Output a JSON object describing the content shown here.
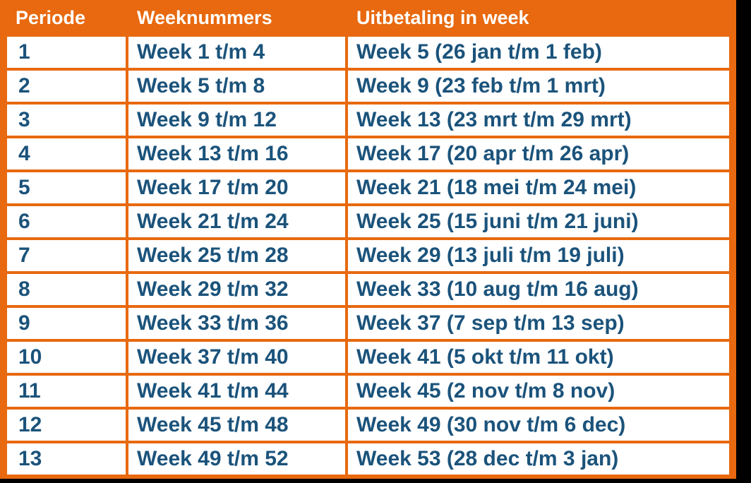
{
  "page": {
    "background_color": "#000000"
  },
  "colors": {
    "table_orange": "#E8690F",
    "header_text": "#FFFFFF",
    "cell_background": "#FFFFFF",
    "cell_text_navy": "#1B537B",
    "outer_black": "#000000"
  },
  "table": {
    "columns": [
      {
        "key": "periode",
        "label": "Periode"
      },
      {
        "key": "weeknummers",
        "label": "Weeknummers"
      },
      {
        "key": "uitbetaling",
        "label": "Uitbetaling in week"
      }
    ],
    "rows": [
      {
        "periode": "1",
        "weeknummers": "Week 1 t/m 4",
        "uitbetaling": "Week 5 (26 jan t/m 1 feb)"
      },
      {
        "periode": "2",
        "weeknummers": "Week 5 t/m 8",
        "uitbetaling": "Week 9 (23 feb t/m 1 mrt)"
      },
      {
        "periode": "3",
        "weeknummers": "Week 9 t/m 12",
        "uitbetaling": "Week 13 (23 mrt t/m 29 mrt)"
      },
      {
        "periode": "4",
        "weeknummers": "Week 13 t/m 16",
        "uitbetaling": "Week 17 (20 apr t/m 26 apr)"
      },
      {
        "periode": "5",
        "weeknummers": "Week 17 t/m 20",
        "uitbetaling": "Week 21 (18 mei t/m 24 mei)"
      },
      {
        "periode": "6",
        "weeknummers": "Week 21 t/m 24",
        "uitbetaling": "Week 25 (15 juni t/m 21 juni)"
      },
      {
        "periode": "7",
        "weeknummers": "Week 25 t/m 28",
        "uitbetaling": "Week 29 (13 juli t/m 19 juli)"
      },
      {
        "periode": "8",
        "weeknummers": "Week 29 t/m 32",
        "uitbetaling": "Week 33 (10 aug t/m 16 aug)"
      },
      {
        "periode": "9",
        "weeknummers": "Week 33 t/m 36",
        "uitbetaling": "Week 37 (7 sep t/m 13 sep)"
      },
      {
        "periode": "10",
        "weeknummers": "Week 37 t/m 40",
        "uitbetaling": "Week 41 (5 okt t/m 11 okt)"
      },
      {
        "periode": "11",
        "weeknummers": "Week 41 t/m 44",
        "uitbetaling": "Week 45 (2 nov t/m 8 nov)"
      },
      {
        "periode": "12",
        "weeknummers": "Week 45 t/m 48",
        "uitbetaling": "Week 49 (30 nov t/m 6 dec)"
      },
      {
        "periode": "13",
        "weeknummers": "Week 49 t/m 52",
        "uitbetaling": "Week 53 (28 dec t/m 3 jan)"
      }
    ]
  },
  "chart_data": {
    "type": "table",
    "columns": [
      "Periode",
      "Weeknummers",
      "Uitbetaling in week"
    ],
    "rows": [
      [
        "1",
        "Week 1 t/m 4",
        "Week 5 (26 jan t/m 1 feb)"
      ],
      [
        "2",
        "Week 5 t/m 8",
        "Week 9 (23 feb t/m 1 mrt)"
      ],
      [
        "3",
        "Week 9 t/m 12",
        "Week 13 (23 mrt t/m 29 mrt)"
      ],
      [
        "4",
        "Week 13 t/m 16",
        "Week 17 (20 apr t/m 26 apr)"
      ],
      [
        "5",
        "Week 17 t/m 20",
        "Week 21 (18 mei t/m 24 mei)"
      ],
      [
        "6",
        "Week 21 t/m 24",
        "Week 25 (15 juni t/m 21 juni)"
      ],
      [
        "7",
        "Week 25 t/m 28",
        "Week 29 (13 juli t/m 19 juli)"
      ],
      [
        "8",
        "Week 29 t/m 32",
        "Week 33 (10 aug t/m 16 aug)"
      ],
      [
        "9",
        "Week 33 t/m 36",
        "Week 37 (7 sep t/m 13 sep)"
      ],
      [
        "10",
        "Week 37 t/m 40",
        "Week 41 (5 okt t/m 11 okt)"
      ],
      [
        "11",
        "Week 41 t/m 44",
        "Week 45 (2 nov t/m 8 nov)"
      ],
      [
        "12",
        "Week 45 t/m 48",
        "Week 49 (30 nov t/m 6 dec)"
      ],
      [
        "13",
        "Week 49 t/m 52",
        "Week 53 (28 dec t/m 3 jan)"
      ]
    ],
    "layout_hints": {
      "header_background": "#E8690F",
      "header_text_color": "#FFFFFF",
      "grid": "orange borders, 4px, separate cells",
      "body_text_color": "#1B537B",
      "body_text_weight": "bold"
    }
  }
}
